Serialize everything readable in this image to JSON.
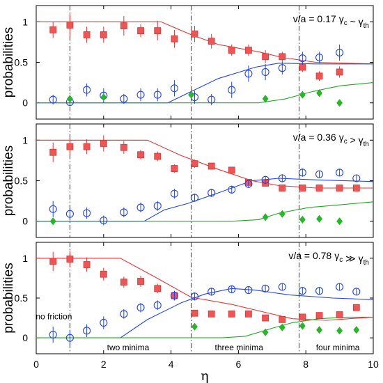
{
  "chart_data": [
    {
      "type": "scatter",
      "panel": "top",
      "annotation": {
        "lhs": "v/a = 0.17",
        "g1": "γ",
        "s1": "c",
        "rel": " ~ ",
        "g2": "γ",
        "s2": "th"
      },
      "ylabel": "probabilities",
      "xlim": [
        0,
        10
      ],
      "ylim": [
        -0.2,
        1.2
      ],
      "yticks": [
        0,
        0.5,
        1
      ],
      "ytick_labels": [
        "0",
        "0.5",
        "1"
      ],
      "vlines": [
        1.0,
        4.6,
        7.8
      ],
      "colors": {
        "red": "#ee3333",
        "blue": "#2244ee",
        "green": "#22aa22"
      },
      "series": [
        {
          "color": "red",
          "marker": "square",
          "x": [
            0.5,
            1.0,
            1.5,
            2.0,
            2.6,
            3.1,
            3.6,
            4.1,
            4.7,
            5.2,
            5.8,
            6.3,
            6.8,
            7.3,
            7.9,
            8.4,
            9.0
          ],
          "y": [
            0.9,
            0.96,
            0.84,
            0.84,
            0.95,
            0.89,
            0.89,
            0.79,
            0.85,
            0.76,
            0.65,
            0.65,
            0.57,
            0.57,
            0.44,
            0.33,
            0.38
          ],
          "err": [
            0.1,
            0.14,
            0.1,
            0.1,
            0.12,
            0.08,
            0.12,
            0.11,
            0.1,
            0.09,
            0.07,
            0.07,
            0.08,
            0.06,
            0.06,
            0.06,
            0.07
          ]
        },
        {
          "color": "blue",
          "marker": "circle",
          "x": [
            0.5,
            1.0,
            1.5,
            2.0,
            2.6,
            3.1,
            3.6,
            4.1,
            4.7,
            5.2,
            5.8,
            6.3,
            6.8,
            7.3,
            7.9,
            8.4,
            9.0
          ],
          "y": [
            0.04,
            0.01,
            0.16,
            0.09,
            0.05,
            0.1,
            0.1,
            0.18,
            0.07,
            0.04,
            0.16,
            0.36,
            0.38,
            0.43,
            0.55,
            0.56,
            0.62
          ],
          "err": [
            0.06,
            0.05,
            0.08,
            0.09,
            0.06,
            0.08,
            0.08,
            0.1,
            0.08,
            0.07,
            0.1,
            0.1,
            0.1,
            0.08,
            0.08,
            0.07,
            0.1
          ]
        },
        {
          "color": "green",
          "marker": "diamond",
          "x": [
            1.0,
            2.0,
            4.6,
            6.8,
            7.9,
            8.4,
            9.0
          ],
          "y": [
            0.05,
            0.07,
            0.1,
            0.05,
            0.1,
            0.12,
            0.0
          ]
        }
      ],
      "curves": [
        {
          "color": "red",
          "x": [
            0,
            3.7,
            4.6,
            5.4,
            6.6,
            7.3,
            8.3,
            10
          ],
          "y": [
            1,
            1,
            0.84,
            0.72,
            0.63,
            0.56,
            0.5,
            0.48
          ]
        },
        {
          "color": "blue",
          "x": [
            0,
            3.9,
            4.6,
            5.4,
            6.5,
            7.2,
            8.3,
            10
          ],
          "y": [
            0,
            0,
            0.14,
            0.3,
            0.44,
            0.49,
            0.48,
            0.48
          ]
        },
        {
          "color": "green",
          "x": [
            0,
            6.6,
            7.4,
            8.2,
            9.0,
            10
          ],
          "y": [
            0,
            0,
            0.05,
            0.14,
            0.21,
            0.25
          ]
        }
      ]
    },
    {
      "type": "scatter",
      "panel": "middle",
      "annotation": {
        "lhs": "v/a = 0.36",
        "g1": "γ",
        "s1": "c",
        "rel": " > ",
        "g2": "γ",
        "s2": "th"
      },
      "ylabel": "probabilities",
      "xlim": [
        0,
        10
      ],
      "ylim": [
        -0.2,
        1.2
      ],
      "yticks": [
        0,
        0.5,
        1
      ],
      "ytick_labels": [
        "0",
        "0.5",
        "1"
      ],
      "vlines": [
        1.0,
        4.6,
        7.8
      ],
      "colors": {
        "red": "#ee3333",
        "blue": "#2244ee",
        "green": "#22aa22"
      },
      "series": [
        {
          "color": "red",
          "marker": "square",
          "x": [
            0.5,
            1.0,
            1.5,
            2.0,
            2.6,
            3.1,
            3.6,
            4.1,
            4.7,
            5.2,
            5.8,
            6.3,
            6.8,
            7.3,
            7.9,
            8.4,
            9.0,
            9.5
          ],
          "y": [
            0.85,
            0.92,
            0.92,
            0.96,
            0.91,
            0.82,
            0.8,
            0.65,
            0.71,
            0.68,
            0.63,
            0.48,
            0.47,
            0.41,
            0.41,
            0.41,
            0.41,
            0.41
          ],
          "err": [
            0.12,
            0.1,
            0.09,
            0.1,
            0.08,
            0.06,
            0.06,
            0.05,
            0.05,
            0.04,
            0.04,
            0.04,
            0.04,
            0.03,
            0.03,
            0.03,
            0.03,
            0.03
          ]
        },
        {
          "color": "blue",
          "marker": "circle",
          "x": [
            0.5,
            1.0,
            1.5,
            2.0,
            2.6,
            3.1,
            3.6,
            4.1,
            4.7,
            5.2,
            5.8,
            6.3,
            6.8,
            7.3,
            7.9,
            8.4,
            9.0,
            9.5
          ],
          "y": [
            0.15,
            0.09,
            0.1,
            0.01,
            0.11,
            0.17,
            0.19,
            0.34,
            0.29,
            0.35,
            0.39,
            0.46,
            0.51,
            0.53,
            0.6,
            0.58,
            0.6,
            0.53
          ],
          "err": [
            0.1,
            0.08,
            0.07,
            0.06,
            0.06,
            0.06,
            0.06,
            0.06,
            0.05,
            0.05,
            0.05,
            0.05,
            0.05,
            0.05,
            0.05,
            0.04,
            0.04,
            0.04
          ]
        },
        {
          "color": "green",
          "marker": "diamond",
          "x": [
            0.5,
            6.8,
            7.3,
            7.9,
            8.4,
            9.0
          ],
          "y": [
            0.0,
            0.05,
            0.09,
            0.02,
            0.03,
            0.0
          ]
        }
      ],
      "curves": [
        {
          "color": "red",
          "x": [
            0,
            3.3,
            4.3,
            5.4,
            6.4,
            7.2,
            8.3,
            10
          ],
          "y": [
            1,
            1,
            0.81,
            0.64,
            0.5,
            0.44,
            0.41,
            0.41
          ]
        },
        {
          "color": "blue",
          "x": [
            0,
            3.2,
            3.8,
            4.5,
            5.4,
            6.4,
            7.2,
            8.3,
            10
          ],
          "y": [
            0,
            0,
            0.14,
            0.22,
            0.35,
            0.5,
            0.53,
            0.51,
            0.49
          ]
        },
        {
          "color": "green",
          "x": [
            0,
            5.8,
            6.6,
            7.2,
            8.1,
            9.2,
            10
          ],
          "y": [
            0,
            0,
            0.02,
            0.1,
            0.17,
            0.21,
            0.24
          ]
        }
      ]
    },
    {
      "type": "scatter",
      "panel": "bottom",
      "annotation": {
        "lhs": "v/a = 0.78",
        "g1": "γ",
        "s1": "c",
        "rel": " ≫ ",
        "g2": "γ",
        "s2": "th"
      },
      "ylabel": "probabilities",
      "xlabel": "η",
      "xlim": [
        0,
        10
      ],
      "ylim": [
        -0.2,
        1.2
      ],
      "yticks": [
        0,
        0.5,
        1
      ],
      "ytick_labels": [
        "0",
        "0.5",
        "1"
      ],
      "xticks": [
        0,
        2,
        4,
        6,
        8,
        10
      ],
      "xtick_labels": [
        "0",
        "2",
        "4",
        "6",
        "8",
        "10"
      ],
      "vlines": [
        1.0,
        4.6,
        7.8
      ],
      "region_labels": [
        "no friction",
        "two minima",
        "three minima",
        "four minima"
      ],
      "colors": {
        "red": "#ee3333",
        "blue": "#2244ee",
        "green": "#22aa22"
      },
      "series": [
        {
          "color": "red",
          "marker": "square",
          "x": [
            0.5,
            1.0,
            1.5,
            2.0,
            2.6,
            3.1,
            3.6,
            4.1,
            4.7,
            5.2,
            5.8,
            6.3,
            6.8,
            7.3,
            7.9,
            8.4,
            9.0,
            9.5
          ],
          "y": [
            0.96,
            0.99,
            0.92,
            0.8,
            0.7,
            0.71,
            0.62,
            0.53,
            0.31,
            0.3,
            0.3,
            0.3,
            0.25,
            0.23,
            0.26,
            0.28,
            0.29,
            0.38
          ],
          "err": [
            0.12,
            0.1,
            0.09,
            0.08,
            0.07,
            0.07,
            0.06,
            0.06,
            0.04,
            0.04,
            0.04,
            0.04,
            0.03,
            0.03,
            0.03,
            0.03,
            0.03,
            0.03
          ]
        },
        {
          "color": "blue",
          "marker": "circle",
          "x": [
            0.5,
            1.0,
            1.5,
            2.0,
            2.6,
            3.1,
            3.6,
            4.1,
            4.7,
            5.2,
            5.8,
            6.3,
            6.8,
            7.3,
            7.9,
            8.4,
            9.0,
            9.5
          ],
          "y": [
            0.04,
            0.0,
            0.09,
            0.19,
            0.3,
            0.38,
            0.41,
            0.53,
            0.52,
            0.58,
            0.61,
            0.6,
            0.62,
            0.64,
            0.59,
            0.59,
            0.64,
            0.58
          ],
          "err": [
            0.1,
            0.1,
            0.08,
            0.08,
            0.06,
            0.06,
            0.06,
            0.06,
            0.05,
            0.05,
            0.05,
            0.04,
            0.04,
            0.04,
            0.04,
            0.04,
            0.04,
            0.04
          ]
        },
        {
          "color": "green",
          "marker": "diamond",
          "x": [
            4.7,
            6.8,
            7.3,
            7.9,
            8.4,
            9.0,
            9.5
          ],
          "y": [
            0.14,
            0.07,
            0.13,
            0.15,
            0.1,
            0.09,
            0.1
          ]
        }
      ],
      "curves": [
        {
          "color": "red",
          "x": [
            0,
            2.5,
            3.5,
            4.6,
            5.8,
            6.8,
            7.6,
            8.6,
            10
          ],
          "y": [
            1,
            1,
            0.77,
            0.51,
            0.42,
            0.32,
            0.24,
            0.22,
            0.26
          ]
        },
        {
          "color": "blue",
          "x": [
            0,
            2.5,
            3.3,
            4.3,
            5.0,
            5.8,
            6.5,
            7.5,
            8.8,
            10
          ],
          "y": [
            0,
            0,
            0.23,
            0.44,
            0.55,
            0.62,
            0.6,
            0.54,
            0.5,
            0.48
          ]
        },
        {
          "color": "green",
          "x": [
            0,
            5.5,
            6.2,
            7.0,
            7.6,
            8.4,
            9.2,
            10
          ],
          "y": [
            0,
            0,
            0.02,
            0.12,
            0.19,
            0.24,
            0.26,
            0.26
          ]
        }
      ]
    }
  ]
}
